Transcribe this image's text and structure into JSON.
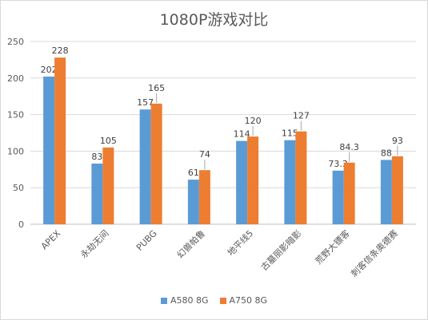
{
  "chart_data": {
    "type": "bar",
    "title": "1080P游戏对比",
    "xlabel": "",
    "ylabel": "",
    "ylim": [
      0,
      250
    ],
    "yticks": [
      0,
      50,
      100,
      150,
      200,
      250
    ],
    "grid": true,
    "legend_position": "bottom",
    "categories": [
      "APEX",
      "永劫无间",
      "PUBG",
      "幻兽帕鲁",
      "地平线5",
      "古墓丽影暗影",
      "荒野大镖客",
      "刺客信条奥德赛"
    ],
    "series": [
      {
        "name": "A580 8G",
        "color": "#5b9bd5",
        "values": [
          202,
          83,
          157,
          61,
          114,
          115,
          73.3,
          88
        ],
        "labels": [
          "202",
          "83",
          "157",
          "61",
          "114",
          "115",
          "73.3",
          "88"
        ]
      },
      {
        "name": "A750 8G",
        "color": "#ed7d31",
        "values": [
          228,
          105,
          165,
          74,
          120,
          127,
          84.3,
          93
        ],
        "labels": [
          "228",
          "105",
          "165",
          "74",
          "120",
          "127",
          "84.3",
          "93"
        ]
      }
    ]
  }
}
